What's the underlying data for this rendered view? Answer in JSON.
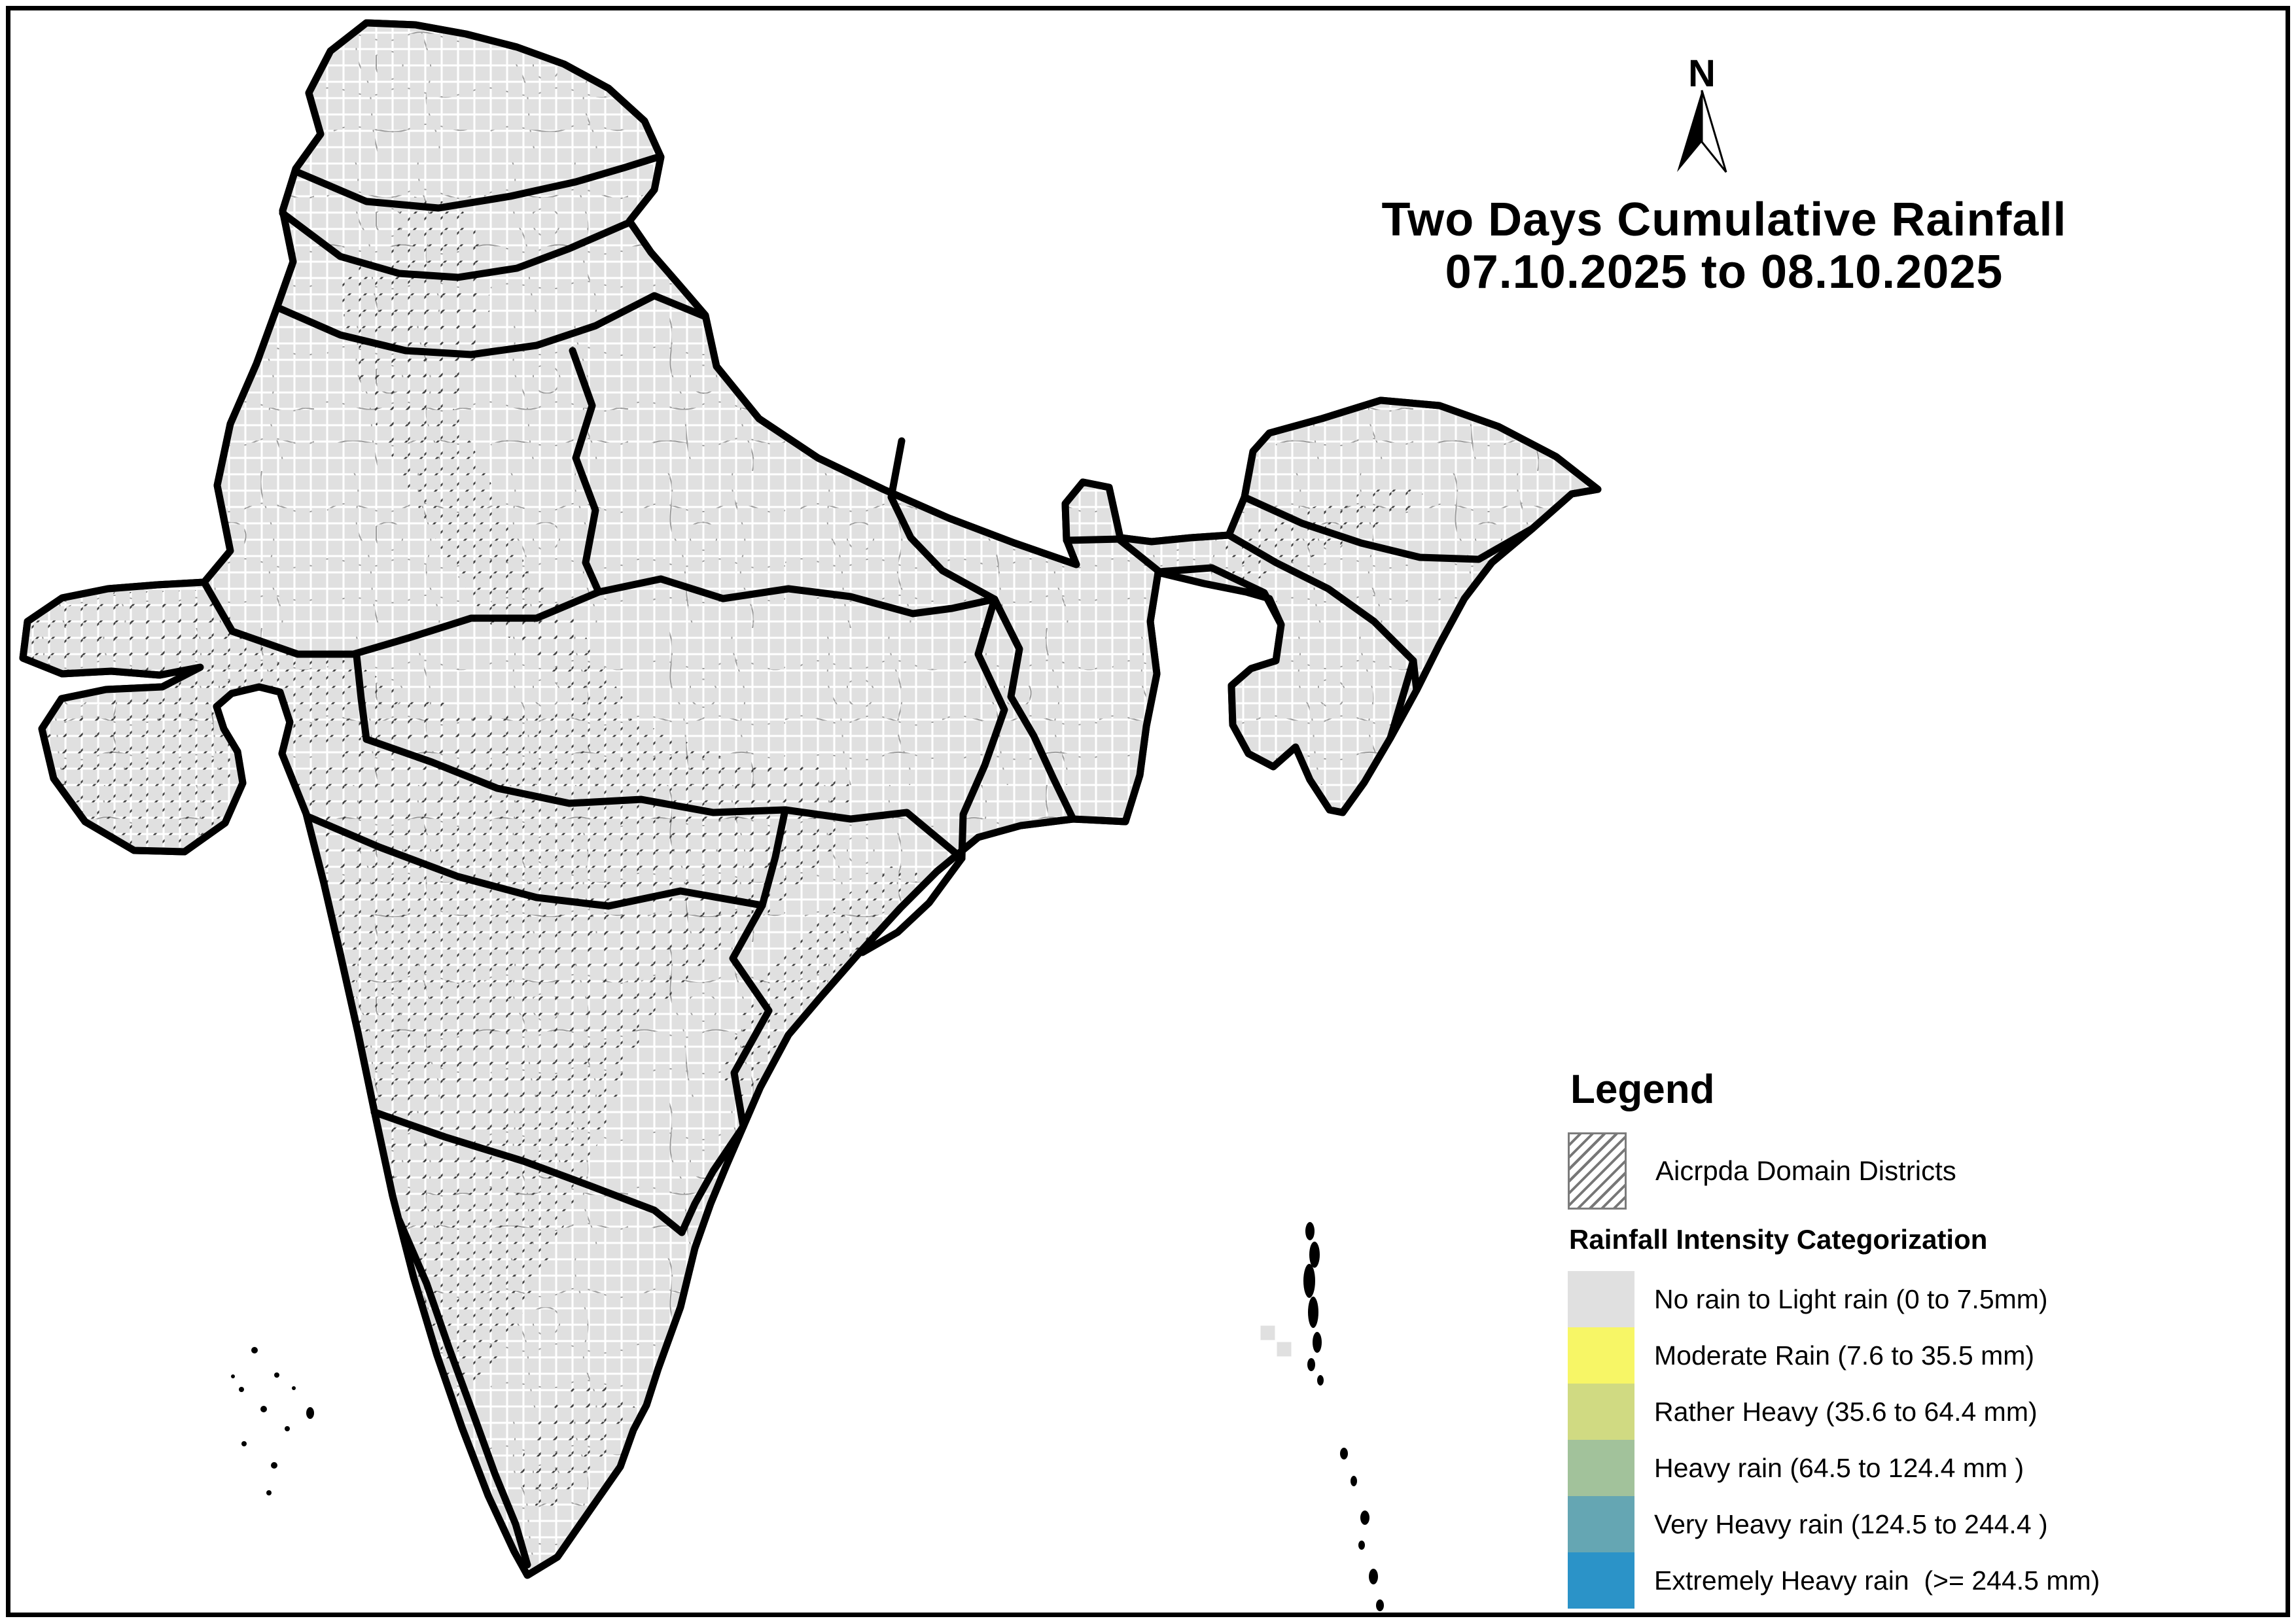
{
  "north_label": "N",
  "title": {
    "line1": "Two Days Cumulative Rainfall",
    "line2": "07.10.2025 to 08.10.2025"
  },
  "legend": {
    "heading": "Legend",
    "domain_label": "Aicrpda Domain Districts",
    "section_heading": "Rainfall Intensity Categorization",
    "classes": [
      {
        "key": "no_rain",
        "label": "No rain to Light rain (0 to 7.5mm)",
        "color": "#e0e0e0"
      },
      {
        "key": "moderate",
        "label": "Moderate Rain (7.6 to 35.5 mm)",
        "color": "#f7f666"
      },
      {
        "key": "rather_heavy",
        "label": "Rather Heavy (35.6 to 64.4 mm)",
        "color": "#d0da82"
      },
      {
        "key": "heavy",
        "label": "Heavy rain (64.5 to 124.4 mm )",
        "color": "#a2c29b"
      },
      {
        "key": "very_heavy",
        "label": "Very Heavy rain (124.5 to 244.4 )",
        "color": "#65a6b3"
      },
      {
        "key": "extremely_heavy",
        "label": "Extremely Heavy rain  (>= 244.5 mm)",
        "color": "#2b93c8"
      }
    ]
  },
  "map": {
    "cell_size": 25,
    "cells": {
      "no_rain": [
        [
          1925,
          2025
        ],
        [
          1950,
          2050
        ]
      ],
      "moderate": [
        [
          550,
          50
        ],
        [
          475,
          75
        ],
        [
          500,
          75
        ],
        [
          550,
          75
        ],
        [
          450,
          100
        ],
        [
          475,
          100
        ],
        [
          550,
          100
        ],
        [
          575,
          100
        ],
        [
          625,
          100
        ],
        [
          450,
          125
        ],
        [
          475,
          125
        ],
        [
          550,
          125
        ],
        [
          575,
          125
        ],
        [
          425,
          150
        ],
        [
          450,
          150
        ],
        [
          500,
          150
        ],
        [
          550,
          150
        ],
        [
          450,
          175
        ],
        [
          475,
          175
        ],
        [
          525,
          175
        ],
        [
          550,
          175
        ],
        [
          575,
          175
        ],
        [
          400,
          200
        ],
        [
          425,
          200
        ],
        [
          475,
          200
        ],
        [
          400,
          225
        ],
        [
          475,
          275
        ],
        [
          500,
          275
        ],
        [
          450,
          300
        ],
        [
          475,
          300
        ],
        [
          525,
          300
        ],
        [
          475,
          325
        ],
        [
          500,
          325
        ],
        [
          550,
          325
        ],
        [
          600,
          325
        ],
        [
          450,
          350
        ],
        [
          500,
          350
        ],
        [
          525,
          350
        ],
        [
          575,
          350
        ],
        [
          625,
          350
        ],
        [
          475,
          375
        ],
        [
          525,
          375
        ],
        [
          550,
          375
        ],
        [
          600,
          375
        ],
        [
          650,
          375
        ],
        [
          450,
          400
        ],
        [
          500,
          400
        ],
        [
          550,
          400
        ],
        [
          625,
          400
        ],
        [
          675,
          400
        ],
        [
          475,
          425
        ],
        [
          525,
          425
        ],
        [
          575,
          425
        ],
        [
          650,
          425
        ],
        [
          700,
          425
        ],
        [
          500,
          450
        ],
        [
          550,
          450
        ],
        [
          600,
          450
        ],
        [
          675,
          450
        ],
        [
          525,
          475
        ],
        [
          575,
          475
        ],
        [
          625,
          475
        ],
        [
          700,
          475
        ],
        [
          775,
          450
        ],
        [
          825,
          475
        ],
        [
          900,
          475
        ],
        [
          950,
          500
        ],
        [
          1000,
          525
        ],
        [
          1100,
          550
        ],
        [
          1150,
          575
        ],
        [
          1200,
          575
        ],
        [
          1250,
          600
        ],
        [
          850,
          525
        ],
        [
          925,
          550
        ],
        [
          550,
          500
        ],
        [
          500,
          525
        ],
        [
          600,
          525
        ],
        [
          650,
          550
        ],
        [
          550,
          575
        ],
        [
          625,
          575
        ],
        [
          700,
          600
        ],
        [
          800,
          625
        ],
        [
          850,
          650
        ],
        [
          900,
          625
        ],
        [
          950,
          675
        ],
        [
          875,
          700
        ],
        [
          800,
          700
        ],
        [
          925,
          725
        ],
        [
          1000,
          725
        ],
        [
          450,
          700
        ],
        [
          475,
          700
        ],
        [
          525,
          700
        ],
        [
          550,
          700
        ],
        [
          625,
          700
        ],
        [
          425,
          725
        ],
        [
          475,
          725
        ],
        [
          500,
          725
        ],
        [
          575,
          725
        ],
        [
          600,
          725
        ],
        [
          450,
          750
        ],
        [
          475,
          750
        ],
        [
          525,
          750
        ],
        [
          550,
          750
        ],
        [
          625,
          750
        ],
        [
          650,
          750
        ],
        [
          425,
          775
        ],
        [
          500,
          775
        ],
        [
          550,
          775
        ],
        [
          600,
          775
        ],
        [
          450,
          800
        ],
        [
          475,
          800
        ],
        [
          525,
          800
        ],
        [
          575,
          800
        ],
        [
          625,
          800
        ],
        [
          425,
          825
        ],
        [
          500,
          825
        ],
        [
          550,
          825
        ],
        [
          600,
          825
        ],
        [
          650,
          825
        ],
        [
          450,
          850
        ],
        [
          475,
          850
        ],
        [
          525,
          850
        ],
        [
          575,
          850
        ],
        [
          625,
          850
        ],
        [
          425,
          875
        ],
        [
          475,
          875
        ],
        [
          550,
          875
        ],
        [
          600,
          875
        ],
        [
          450,
          900
        ],
        [
          500,
          900
        ],
        [
          525,
          900
        ],
        [
          575,
          900
        ],
        [
          625,
          900
        ],
        [
          475,
          925
        ],
        [
          550,
          925
        ],
        [
          600,
          925
        ],
        [
          350,
          775
        ],
        [
          300,
          825
        ],
        [
          325,
          875
        ],
        [
          275,
          900
        ],
        [
          350,
          925
        ],
        [
          250,
          950
        ],
        [
          300,
          975
        ],
        [
          375,
          950
        ],
        [
          1050,
          625
        ],
        [
          1150,
          650
        ],
        [
          1250,
          675
        ],
        [
          1100,
          725
        ],
        [
          1200,
          750
        ],
        [
          1300,
          775
        ],
        [
          1150,
          800
        ],
        [
          1250,
          825
        ],
        [
          1350,
          850
        ],
        [
          1050,
          800
        ],
        [
          1450,
          800
        ],
        [
          1550,
          825
        ],
        [
          1625,
          875
        ],
        [
          1500,
          900
        ],
        [
          1600,
          925
        ],
        [
          1650,
          800
        ],
        [
          1625,
          825
        ],
        [
          300,
          1050
        ],
        [
          350,
          1075
        ],
        [
          300,
          1100
        ],
        [
          325,
          1125
        ],
        [
          450,
          1125
        ],
        [
          250,
          1150
        ],
        [
          450,
          1100
        ],
        [
          250,
          1225
        ],
        [
          300,
          1250
        ],
        [
          375,
          1225
        ],
        [
          425,
          1250
        ],
        [
          325,
          1275
        ],
        [
          200,
          1150
        ],
        [
          150,
          1225
        ],
        [
          750,
          1150
        ],
        [
          850,
          1175
        ],
        [
          950,
          1175
        ],
        [
          1050,
          1200
        ],
        [
          700,
          1225
        ],
        [
          800,
          1250
        ],
        [
          900,
          1275
        ],
        [
          1000,
          1250
        ],
        [
          1100,
          1275
        ],
        [
          1200,
          1250
        ],
        [
          650,
          1300
        ],
        [
          750,
          1325
        ],
        [
          1150,
          1325
        ],
        [
          1250,
          1300
        ],
        [
          1300,
          1375
        ],
        [
          1200,
          1425
        ],
        [
          1350,
          1300
        ],
        [
          1100,
          1425
        ],
        [
          1375,
          1350
        ],
        [
          1400,
          1375
        ],
        [
          1300,
          1450
        ],
        [
          550,
          1375
        ],
        [
          650,
          1450
        ],
        [
          750,
          1525
        ],
        [
          600,
          1550
        ],
        [
          800,
          1575
        ],
        [
          1000,
          1550
        ],
        [
          1075,
          1600
        ],
        [
          1150,
          1625
        ],
        [
          1050,
          1675
        ],
        [
          1125,
          1700
        ],
        [
          950,
          1625
        ],
        [
          1075,
          1850
        ],
        [
          925,
          2025
        ],
        [
          950,
          2100
        ],
        [
          950,
          2150
        ],
        [
          875,
          2175
        ],
        [
          900,
          2175
        ],
        [
          640,
          2075
        ],
        [
          725,
          1825
        ],
        [
          2050,
          750
        ],
        [
          2025,
          750
        ],
        [
          2125,
          775
        ],
        [
          2200,
          800
        ],
        [
          1950,
          800
        ],
        [
          2275,
          825
        ],
        [
          2350,
          875
        ],
        [
          2300,
          950
        ],
        [
          2200,
          925
        ],
        [
          2100,
          950
        ],
        [
          1950,
          1000
        ],
        [
          1900,
          1000
        ],
        [
          2250,
          1000
        ],
        [
          1775,
          1025
        ],
        [
          2150,
          875
        ],
        [
          2250,
          700
        ],
        [
          2325,
          725
        ],
        [
          1950,
          1125
        ],
        [
          1700,
          850
        ]
      ],
      "rather_heavy": [
        [
          500,
          100
        ],
        [
          525,
          125
        ],
        [
          450,
          125
        ],
        [
          425,
          175
        ],
        [
          550,
          350
        ],
        [
          575,
          375
        ],
        [
          600,
          400
        ],
        [
          550,
          425
        ],
        [
          525,
          350
        ],
        [
          600,
          350
        ],
        [
          575,
          425
        ],
        [
          625,
          450
        ],
        [
          775,
          475
        ],
        [
          475,
          825
        ],
        [
          550,
          800
        ],
        [
          100,
          1125
        ],
        [
          125,
          1150
        ],
        [
          175,
          1150
        ],
        [
          200,
          1125
        ],
        [
          250,
          1150
        ],
        [
          275,
          1175
        ],
        [
          325,
          1175
        ],
        [
          150,
          1175
        ],
        [
          225,
          1200
        ],
        [
          125,
          1225
        ],
        [
          175,
          1225
        ],
        [
          300,
          1150
        ],
        [
          350,
          1125
        ],
        [
          400,
          1150
        ],
        [
          100,
          1200
        ],
        [
          200,
          1175
        ],
        [
          250,
          1125
        ],
        [
          425,
          1125
        ],
        [
          375,
          1200
        ],
        [
          250,
          1200
        ],
        [
          150,
          1100
        ],
        [
          175,
          1100
        ],
        [
          1350,
          1300
        ],
        [
          1375,
          1325
        ],
        [
          1375,
          1375
        ],
        [
          1675,
          850
        ],
        [
          1700,
          875
        ],
        [
          2075,
          1000
        ],
        [
          2150,
          975
        ],
        [
          1850,
          1025
        ],
        [
          2100,
          1075
        ],
        [
          2375,
          900
        ],
        [
          1900,
          1075
        ],
        [
          2050,
          1100
        ],
        [
          2000,
          1125
        ],
        [
          2075,
          1150
        ],
        [
          950,
          1950
        ]
      ],
      "heavy": [
        [
          150,
          1125
        ],
        [
          225,
          1175
        ],
        [
          275,
          1150
        ],
        [
          325,
          1150
        ],
        [
          1825,
          875
        ],
        [
          2100,
          975
        ],
        [
          1400,
          1350
        ],
        [
          1175,
          1575
        ]
      ],
      "very_heavy": [
        [
          300,
          1175
        ],
        [
          475,
          1175
        ],
        [
          500,
          1150
        ],
        [
          550,
          1150
        ],
        [
          350,
          1200
        ],
        [
          425,
          1200
        ],
        [
          375,
          1150
        ],
        [
          525,
          1150
        ],
        [
          450,
          1200
        ],
        [
          2050,
          975
        ],
        [
          2075,
          975
        ],
        [
          1725,
          850
        ],
        [
          2050,
          1025
        ]
      ],
      "extremely_heavy": [
        [
          125,
          1100
        ],
        [
          200,
          1100
        ],
        [
          225,
          1100
        ],
        [
          250,
          1100
        ],
        [
          350,
          1150
        ],
        [
          425,
          1150
        ],
        [
          450,
          1150
        ],
        [
          475,
          1150
        ],
        [
          500,
          1175
        ],
        [
          525,
          1175
        ],
        [
          400,
          1175
        ],
        [
          550,
          1175
        ],
        [
          1950,
          975
        ],
        [
          1975,
          975
        ],
        [
          2000,
          975
        ],
        [
          2025,
          975
        ],
        [
          1925,
          1025
        ],
        [
          2025,
          1025
        ],
        [
          1800,
          875
        ],
        [
          1925,
          1125
        ],
        [
          2025,
          1150
        ]
      ]
    }
  }
}
